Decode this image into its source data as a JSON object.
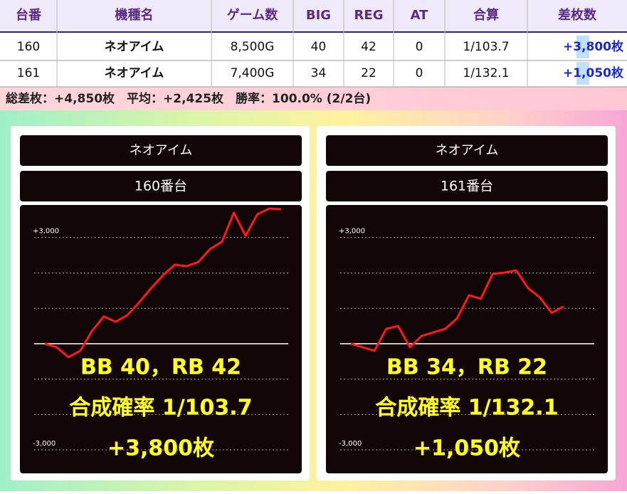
{
  "table": {
    "header": [
      "台番",
      "機種名",
      "ゲーム数",
      "BIG",
      "REG",
      "AT",
      "合算",
      "差枚数"
    ],
    "rows": [
      [
        "160",
        "ネオアイム",
        "8,500G",
        "40",
        "42",
        "0",
        "1/103.7",
        "+3,800枚"
      ],
      [
        "161",
        "ネオアイム",
        "7,400G",
        "34",
        "22",
        "0",
        "1/132.1",
        "+1,050枚"
      ]
    ],
    "summary": "総差枚：+4,850枚　平均：+2,425枚　勝率：100.0% (2/2台)"
  },
  "chart_data": [
    {
      "type": "line",
      "title": "ネオアイム",
      "subtitle": "160番台",
      "color": "#ff1a1a",
      "values": [
        0,
        -100,
        -380,
        -200,
        360,
        770,
        620,
        810,
        1170,
        1570,
        1930,
        2230,
        2190,
        2310,
        2680,
        2880,
        3700,
        3050,
        3660,
        3820,
        3800
      ],
      "ylim": [
        -3100,
        3900
      ],
      "yticks": [
        {
          "value": 3000,
          "label": "+3,000"
        },
        {
          "value": -3000,
          "label": "-3,000"
        }
      ],
      "grid_lines": [
        2000,
        1000,
        0,
        -1000,
        -2000
      ],
      "annotations": [
        "BB 40，RB 42",
        "合成確率  1/103.7",
        "+3,800枚"
      ]
    },
    {
      "type": "line",
      "title": "ネオアイム",
      "subtitle": "161番台",
      "color": "#ff1a1a",
      "values": [
        0,
        -100,
        -200,
        420,
        500,
        -100,
        220,
        320,
        420,
        720,
        1370,
        1270,
        1970,
        2010,
        2070,
        1570,
        1310,
        870,
        1050
      ],
      "ylim": [
        -3100,
        3900
      ],
      "yticks": [
        {
          "value": 3000,
          "label": "+3,000"
        },
        {
          "value": -3000,
          "label": "-3,000"
        }
      ],
      "grid_lines": [
        2000,
        1000,
        0,
        -1000,
        -2000
      ],
      "annotations": [
        "BB 34，RB 22",
        "合成確率  1/132.1",
        "+1,050枚"
      ]
    }
  ]
}
